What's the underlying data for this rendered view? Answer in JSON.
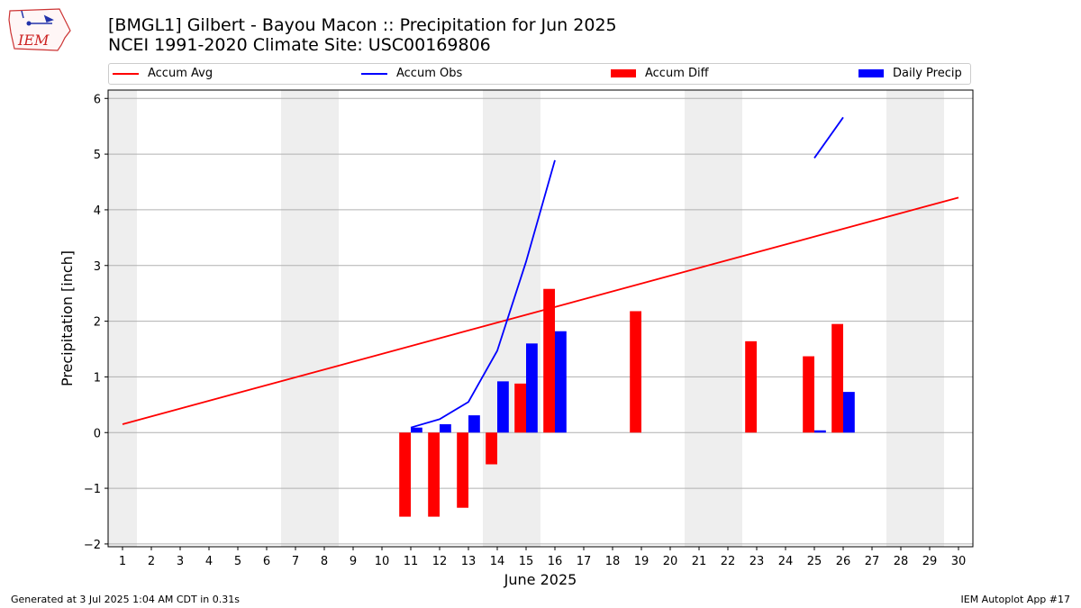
{
  "header": {
    "title": "[BMGL1] Gilbert - Bayou Macon :: Precipitation for Jun 2025",
    "subtitle": "NCEI 1991-2020 Climate Site: USC00169806"
  },
  "logo": {
    "text": "IEM",
    "icon": "iowa-state-map-logo"
  },
  "footer": {
    "generated": "Generated at 3 Jul 2025 1:04 AM CDT in 0.31s",
    "app": "IEM Autoplot App #17"
  },
  "chart_data": {
    "type": "bar",
    "xlabel": "June 2025",
    "ylabel": "Precipitation [inch]",
    "xlim": [
      0.5,
      30.5
    ],
    "ylim": [
      -2.05,
      6.15
    ],
    "yticks": [
      -2,
      -1,
      0,
      1,
      2,
      3,
      4,
      5,
      6
    ],
    "ytick_labels": [
      "−2",
      "−1",
      "0",
      "1",
      "2",
      "3",
      "4",
      "5",
      "6"
    ],
    "xticks": [
      1,
      2,
      3,
      4,
      5,
      6,
      7,
      8,
      9,
      10,
      11,
      12,
      13,
      14,
      15,
      16,
      17,
      18,
      19,
      20,
      21,
      22,
      23,
      24,
      25,
      26,
      27,
      28,
      29,
      30
    ],
    "grid": true,
    "legend_position": "top",
    "weekend_shading": [
      [
        0.5,
        1.5
      ],
      [
        6.5,
        8.5
      ],
      [
        13.5,
        15.5
      ],
      [
        20.5,
        22.5
      ],
      [
        27.5,
        29.5
      ]
    ],
    "series": [
      {
        "name": "Accum Avg",
        "kind": "line",
        "color": "#ff0000",
        "x": [
          1,
          30
        ],
        "y": [
          0.15,
          4.22
        ]
      },
      {
        "name": "Accum Obs",
        "kind": "line",
        "color": "#0000ff",
        "segments": [
          {
            "x": [
              11,
              12,
              13,
              14,
              15,
              16
            ],
            "y": [
              0.09,
              0.24,
              0.55,
              1.47,
              3.07,
              4.89
            ]
          },
          {
            "x": [
              25,
              26
            ],
            "y": [
              4.93,
              5.66
            ]
          }
        ]
      },
      {
        "name": "Accum Diff",
        "kind": "bar",
        "color": "#ff0000",
        "x": [
          11,
          12,
          13,
          14,
          15,
          16,
          19,
          23,
          25,
          26
        ],
        "values": [
          -1.51,
          -1.51,
          -1.35,
          -0.57,
          0.88,
          2.58,
          2.18,
          1.64,
          1.37,
          1.95
        ]
      },
      {
        "name": "Daily Precip",
        "kind": "bar",
        "color": "#0000ff",
        "x": [
          11,
          12,
          13,
          14,
          15,
          16,
          25,
          26
        ],
        "values": [
          0.09,
          0.15,
          0.31,
          0.92,
          1.6,
          1.82,
          0.04,
          0.73
        ]
      }
    ]
  }
}
